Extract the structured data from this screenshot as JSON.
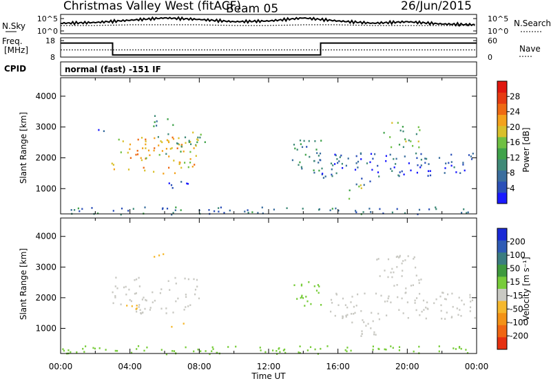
{
  "header": {
    "station": "Christmas Valley West (fitACF)",
    "beam": "Beam 05",
    "date": "26/Jun/2015"
  },
  "labels": {
    "nsky": "N.Sky",
    "nsearch": "N.Search",
    "freq": "Freq.",
    "freq_unit": "[MHz]",
    "nave": "Nave",
    "cpid": "CPID",
    "cpid_value": "normal (fast) -151 IF",
    "slant_range": "Slant Range [km]",
    "time_axis": "Time UT",
    "power_label": "Power [dB]",
    "velocity_label": "Velocity [m s⁻¹]"
  },
  "chart_data": [
    {
      "type": "line",
      "name": "noise-panel",
      "left_axis": {
        "ticks": [
          "10^5",
          "10^0"
        ]
      },
      "right_axis": {
        "ticks": [
          "10^5",
          "10^0"
        ]
      },
      "x": [
        0,
        2,
        4,
        6,
        8,
        10,
        12,
        14,
        16,
        18,
        20,
        22,
        24
      ],
      "series": [
        {
          "values": [
            1.2,
            1.3,
            1.6,
            1.9,
            1.7,
            1.4,
            1.5,
            1.9,
            1.5,
            1.2,
            1.4,
            1.1,
            1.0
          ]
        },
        {
          "values": [
            0.9,
            0.9,
            1.0,
            1.0,
            1.0,
            0.9,
            0.9,
            1.0,
            1.0,
            0.9,
            0.9,
            0.9,
            0.9
          ]
        }
      ]
    },
    {
      "type": "line",
      "name": "frequency-panel",
      "left_axis": {
        "ticks": [
          "18",
          "8"
        ],
        "range": [
          8,
          18
        ]
      },
      "right_axis": {
        "ticks": [
          "60",
          "0"
        ],
        "range": [
          0,
          60
        ]
      },
      "series": [
        {
          "name": "freq",
          "x": [
            0,
            3,
            3,
            15,
            15,
            24
          ],
          "values": [
            16.5,
            16.5,
            9.3,
            9.3,
            16.5,
            16.5
          ]
        },
        {
          "name": "nave",
          "x": [
            0,
            24
          ],
          "values": [
            26,
            26
          ]
        }
      ]
    },
    {
      "type": "heatmap",
      "name": "power",
      "xlabel": "Time UT",
      "ylabel": "Slant Range [km]",
      "xlim": [
        0,
        24
      ],
      "ylim": [
        180,
        4600
      ],
      "yticks": [
        1000,
        2000,
        3000,
        4000
      ],
      "colorbar": {
        "label": "Power [dB]",
        "ticks": [
          4,
          8,
          12,
          16,
          20,
          24,
          28
        ],
        "colors": [
          "#1a1aff",
          "#2b50b8",
          "#3a6e9e",
          "#408a78",
          "#3fa24a",
          "#6fc043",
          "#d9c02c",
          "#f4a21d",
          "#ee6a14",
          "#e63b12",
          "#e0170f"
        ]
      },
      "regions": [
        {
          "t0": 2.9,
          "t1": 7.8,
          "r0": 1500,
          "r1": 2700,
          "level": 22
        },
        {
          "t0": 5.5,
          "t1": 8.4,
          "r0": 2100,
          "r1": 3000,
          "level": 14
        },
        {
          "t0": 5.1,
          "t1": 6.5,
          "r0": 3050,
          "r1": 3400,
          "level": 12
        },
        {
          "t0": 2.0,
          "t1": 2.6,
          "r0": 2800,
          "r1": 3100,
          "level": 6
        },
        {
          "t0": 6.2,
          "t1": 7.6,
          "r0": 1050,
          "r1": 1300,
          "level": 5
        },
        {
          "t0": 13.3,
          "t1": 15.0,
          "r0": 1600,
          "r1": 2700,
          "level": 10
        },
        {
          "t0": 14.5,
          "t1": 16.0,
          "r0": 1300,
          "r1": 2200,
          "level": 7
        },
        {
          "t0": 16.6,
          "t1": 17.4,
          "r0": 700,
          "r1": 1200,
          "level": 17
        },
        {
          "t0": 17.0,
          "t1": 18.2,
          "r0": 1100,
          "r1": 1400,
          "level": 9
        },
        {
          "t0": 15.5,
          "t1": 24.0,
          "r0": 1400,
          "r1": 2200,
          "level": 6
        },
        {
          "t0": 18.5,
          "t1": 20.8,
          "r0": 2300,
          "r1": 3200,
          "level": 15
        },
        {
          "t0": 0.2,
          "t1": 23.8,
          "r0": 180,
          "r1": 420,
          "level": 8
        }
      ]
    },
    {
      "type": "heatmap",
      "name": "velocity",
      "xlabel": "Time UT",
      "ylabel": "Slant Range [km]",
      "xlim": [
        0,
        24
      ],
      "ylim": [
        180,
        4600
      ],
      "yticks": [
        1000,
        2000,
        3000,
        4000
      ],
      "xticks": [
        "00:00",
        "04:00",
        "08:00",
        "12:00",
        "16:00",
        "20:00",
        "00:00"
      ],
      "colorbar": {
        "label": "Velocity [m s⁻¹]",
        "ticks": [
          200,
          100,
          50,
          15,
          -15,
          -50,
          -100,
          -200
        ],
        "colors": [
          "#1a2ad6",
          "#2f5bb5",
          "#3b7d80",
          "#3f9a3e",
          "#78cc3a",
          "#c9c9c3",
          "#f5b82e",
          "#f39217",
          "#f06612",
          "#e63010"
        ]
      },
      "regions": [
        {
          "t0": 2.9,
          "t1": 8.0,
          "r0": 1500,
          "r1": 2700,
          "level": 0
        },
        {
          "t0": 3.5,
          "t1": 4.5,
          "r0": 1600,
          "r1": 1900,
          "level": -40
        },
        {
          "t0": 6.3,
          "t1": 7.7,
          "r0": 1050,
          "r1": 1300,
          "level": -40
        },
        {
          "t0": 4.8,
          "t1": 6.0,
          "r0": 3250,
          "r1": 3500,
          "level": -40
        },
        {
          "t0": 13.3,
          "t1": 15.0,
          "r0": 1500,
          "r1": 2600,
          "level": 20
        },
        {
          "t0": 15.5,
          "t1": 24.0,
          "r0": 1300,
          "r1": 2200,
          "level": 0
        },
        {
          "t0": 16.5,
          "t1": 18.2,
          "r0": 700,
          "r1": 1300,
          "level": 0
        },
        {
          "t0": 18.2,
          "t1": 20.8,
          "r0": 2300,
          "r1": 3400,
          "level": 0
        },
        {
          "t0": 0.0,
          "t1": 24.0,
          "r0": 180,
          "r1": 450,
          "level": 25
        }
      ]
    }
  ]
}
